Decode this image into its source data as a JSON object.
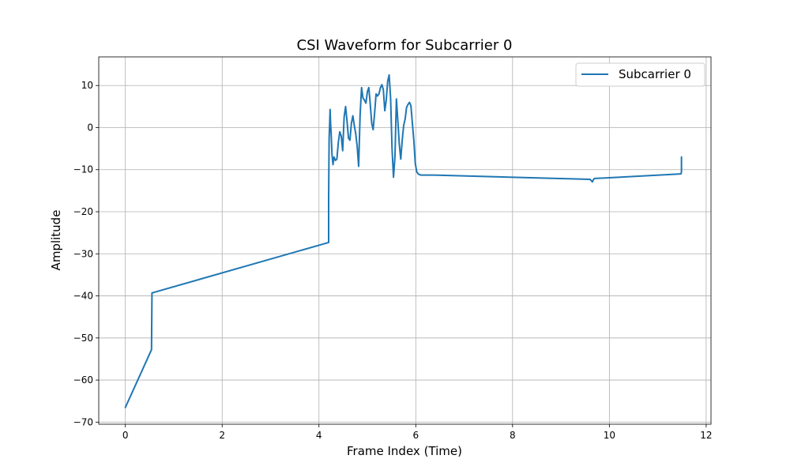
{
  "chart_data": {
    "type": "line",
    "title": "CSI Waveform for Subcarrier 0",
    "xlabel": "Frame Index (Time)",
    "ylabel": "Amplitude",
    "xlim": [
      -0.55,
      12.1
    ],
    "ylim": [
      -70.5,
      16.8
    ],
    "xticks": [
      0,
      2,
      4,
      6,
      8,
      10,
      12
    ],
    "yticks": [
      -70,
      -60,
      -50,
      -40,
      -30,
      -20,
      -10,
      0,
      10
    ],
    "grid": true,
    "legend": {
      "position": "top-right"
    },
    "series": [
      {
        "name": "Subcarrier 0",
        "color": "#1f77b4",
        "x": [
          0,
          0.54,
          0.55,
          4.2,
          4.2,
          4.21,
          4.22,
          4.23,
          4.24,
          4.25,
          4.27,
          4.29,
          4.31,
          4.34,
          4.37,
          4.4,
          4.43,
          4.46,
          4.49,
          4.52,
          4.55,
          4.58,
          4.61,
          4.64,
          4.67,
          4.7,
          4.73,
          4.76,
          4.79,
          4.82,
          4.85,
          4.88,
          4.91,
          4.94,
          4.97,
          5.0,
          5.03,
          5.06,
          5.09,
          5.12,
          5.15,
          5.18,
          5.21,
          5.24,
          5.27,
          5.3,
          5.33,
          5.36,
          5.39,
          5.42,
          5.45,
          5.48,
          5.51,
          5.54,
          5.57,
          5.6,
          5.63,
          5.66,
          5.69,
          5.72,
          5.75,
          5.78,
          5.81,
          5.84,
          5.87,
          5.9,
          5.93,
          5.96,
          5.99,
          6.02,
          6.05,
          6.08,
          6.11,
          6.14,
          6.17,
          6.2,
          6.23,
          6.26,
          6.29,
          6.32,
          6.35,
          6.36,
          6.38,
          9.6,
          9.65,
          9.68,
          9.7,
          11.48,
          11.49,
          11.49
        ],
        "y": [
          -66.5,
          -52.8,
          -39.3,
          -27.3,
          -16.5,
          -2.5,
          0.5,
          4.3,
          1.0,
          -1.0,
          -6.5,
          -8.8,
          -7.0,
          -7.8,
          -7.5,
          -3.5,
          -1.0,
          -2.0,
          -5.5,
          2.5,
          5.0,
          1.5,
          -2.5,
          -3.0,
          1.0,
          2.8,
          0.5,
          -1.5,
          -4.5,
          -9.2,
          3.0,
          9.5,
          7.0,
          6.5,
          5.8,
          8.5,
          9.5,
          5.5,
          1.0,
          -0.5,
          3.5,
          8.0,
          7.5,
          8.0,
          9.5,
          10.2,
          9.0,
          4.0,
          6.5,
          11.0,
          12.5,
          7.0,
          -5.0,
          -11.8,
          -7.0,
          6.8,
          1.5,
          -4.0,
          -7.5,
          -3.0,
          0.5,
          2.0,
          4.8,
          5.5,
          6.0,
          5.2,
          1.0,
          -3.0,
          -8.5,
          -10.5,
          -11.0,
          -11.2,
          -11.3,
          -11.3,
          -11.3,
          -11.3,
          -11.3,
          -11.3,
          -11.3,
          -11.3,
          -11.3,
          -11.3,
          -11.3,
          -12.3,
          -12.9,
          -12.2,
          -12.1,
          -11.0,
          -10.5,
          -7.0
        ]
      }
    ]
  }
}
